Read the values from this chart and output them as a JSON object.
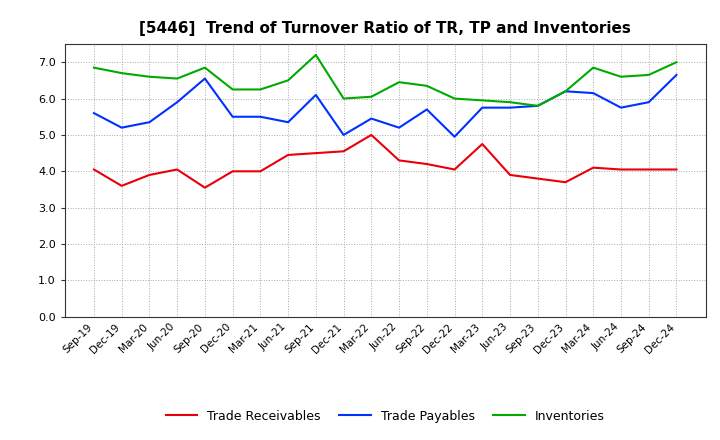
{
  "title": "[5446]  Trend of Turnover Ratio of TR, TP and Inventories",
  "labels": [
    "Sep-19",
    "Dec-19",
    "Mar-20",
    "Jun-20",
    "Sep-20",
    "Dec-20",
    "Mar-21",
    "Jun-21",
    "Sep-21",
    "Dec-21",
    "Mar-22",
    "Jun-22",
    "Sep-22",
    "Dec-22",
    "Mar-23",
    "Jun-23",
    "Sep-23",
    "Dec-23",
    "Mar-24",
    "Jun-24",
    "Sep-24",
    "Dec-24"
  ],
  "trade_receivables": [
    4.05,
    3.6,
    3.9,
    4.05,
    3.55,
    4.0,
    4.0,
    4.45,
    4.5,
    4.55,
    5.0,
    4.3,
    4.2,
    4.05,
    4.75,
    3.9,
    3.8,
    3.7,
    4.1,
    4.05,
    4.05,
    4.05
  ],
  "trade_payables": [
    5.6,
    5.2,
    5.35,
    5.9,
    6.55,
    5.5,
    5.5,
    5.35,
    6.1,
    5.0,
    5.45,
    5.2,
    5.7,
    4.95,
    5.75,
    5.75,
    5.8,
    6.2,
    6.15,
    5.75,
    5.9,
    6.65
  ],
  "inventories": [
    6.85,
    6.7,
    6.6,
    6.55,
    6.85,
    6.25,
    6.25,
    6.5,
    7.2,
    6.0,
    6.05,
    6.45,
    6.35,
    6.0,
    5.95,
    5.9,
    5.8,
    6.2,
    6.85,
    6.6,
    6.65,
    7.0
  ],
  "tr_color": "#e8000a",
  "tp_color": "#0032ff",
  "inv_color": "#00aa00",
  "ylim": [
    0.0,
    7.5
  ],
  "yticks": [
    0.0,
    1.0,
    2.0,
    3.0,
    4.0,
    5.0,
    6.0,
    7.0
  ],
  "legend_labels": [
    "Trade Receivables",
    "Trade Payables",
    "Inventories"
  ],
  "bg_color": "#ffffff",
  "plot_bg_color": "#ffffff"
}
